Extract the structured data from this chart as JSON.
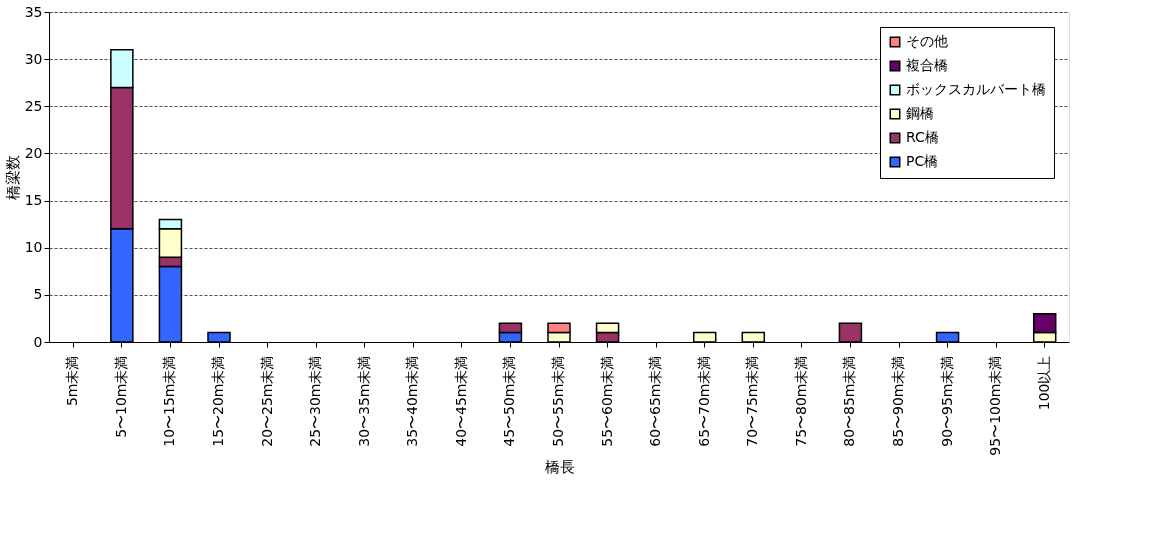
{
  "chart_data": {
    "type": "bar",
    "stacked": true,
    "xlabel": "橋長",
    "ylabel": "橋梁数",
    "categories": [
      "5m未満",
      "5〜10m未満",
      "10〜15m未満",
      "15〜20m未満",
      "20〜25m未満",
      "25〜30m未満",
      "30〜35m未満",
      "35〜40m未満",
      "40〜45m未満",
      "45〜50m未満",
      "50〜55m未満",
      "55〜60m未満",
      "60〜65m未満",
      "65〜70m未満",
      "70〜75m未満",
      "75〜80m未満",
      "80〜85m未満",
      "85〜90m未満",
      "90〜95m未満",
      "95〜100m未満",
      "100以上"
    ],
    "series": [
      {
        "name": "PC橋",
        "color": "#3366ff",
        "values": [
          null,
          12,
          8,
          1,
          null,
          null,
          null,
          null,
          null,
          1,
          null,
          null,
          null,
          null,
          null,
          null,
          null,
          null,
          1,
          null,
          null
        ]
      },
      {
        "name": "RC橋",
        "color": "#993366",
        "values": [
          null,
          15,
          1,
          null,
          null,
          null,
          null,
          null,
          null,
          1,
          null,
          1,
          null,
          null,
          null,
          null,
          2,
          null,
          null,
          null,
          null
        ]
      },
      {
        "name": "鋼橋",
        "color": "#ffffcc",
        "values": [
          null,
          null,
          3,
          null,
          null,
          null,
          null,
          null,
          null,
          null,
          1,
          1,
          null,
          1,
          1,
          null,
          null,
          null,
          null,
          null,
          1
        ]
      },
      {
        "name": "ボックスカルバート橋",
        "color": "#ccffff",
        "values": [
          null,
          4,
          1,
          null,
          null,
          null,
          null,
          null,
          null,
          null,
          null,
          null,
          null,
          null,
          null,
          null,
          null,
          null,
          null,
          null,
          null
        ]
      },
      {
        "name": "複合橋",
        "color": "#660066",
        "values": [
          null,
          null,
          null,
          null,
          null,
          null,
          null,
          null,
          null,
          null,
          null,
          null,
          null,
          null,
          null,
          null,
          null,
          null,
          null,
          null,
          2
        ]
      },
      {
        "name": "その他",
        "color": "#ff8080",
        "values": [
          null,
          null,
          null,
          null,
          null,
          null,
          null,
          null,
          null,
          null,
          1,
          null,
          null,
          null,
          null,
          null,
          null,
          null,
          null,
          null,
          null
        ]
      }
    ],
    "ylim": [
      0,
      35
    ],
    "yticks": [
      0,
      5,
      10,
      15,
      20,
      25,
      30,
      35
    ],
    "grid": "y",
    "legend": "top right"
  }
}
